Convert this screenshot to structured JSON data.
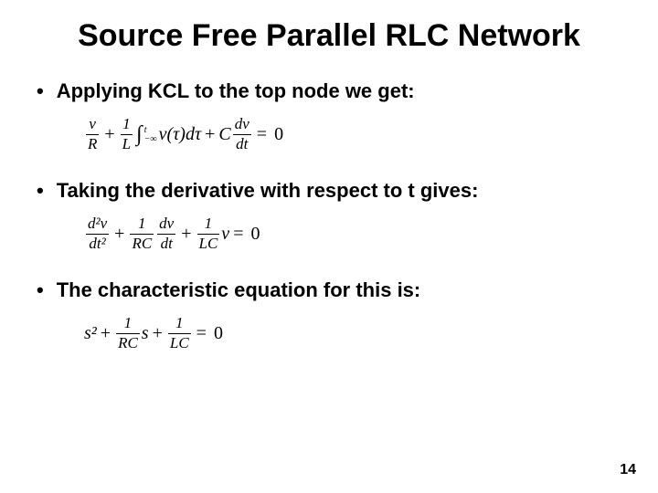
{
  "title": "Source Free Parallel RLC Network",
  "bullets": [
    "Applying KCL to the top node we get:",
    "Taking the derivative with respect to t gives:",
    "The characteristic equation for this is:"
  ],
  "equations": {
    "eq1": {
      "frac1_num": "v",
      "frac1_den": "R",
      "plus1": "+",
      "frac2_num": "1",
      "frac2_den": "L",
      "int_sym": "∫",
      "int_upper": "t",
      "int_lower": "−∞",
      "integrand": "v(τ)dτ",
      "plus2": "+",
      "C": "C",
      "frac3_num": "dv",
      "frac3_den": "dt",
      "eq": "=",
      "zero": "0"
    },
    "eq2": {
      "frac1_num": "d²v",
      "frac1_den": "dt²",
      "plus1": "+",
      "frac2_num": "1",
      "frac2_den": "RC",
      "frac3_num": "dv",
      "frac3_den": "dt",
      "plus2": "+",
      "frac4_num": "1",
      "frac4_den": "LC",
      "v": "v",
      "eq": "=",
      "zero": "0"
    },
    "eq3": {
      "s2": "s²",
      "plus1": "+",
      "frac1_num": "1",
      "frac1_den": "RC",
      "s": "s",
      "plus2": "+",
      "frac2_num": "1",
      "frac2_den": "LC",
      "eq": "=",
      "zero": "0"
    }
  },
  "page_number": "14",
  "colors": {
    "background": "#ffffff",
    "text": "#000000"
  },
  "fonts": {
    "title_size_pt": 34,
    "bullet_size_pt": 22,
    "equation_size_pt": 20
  }
}
